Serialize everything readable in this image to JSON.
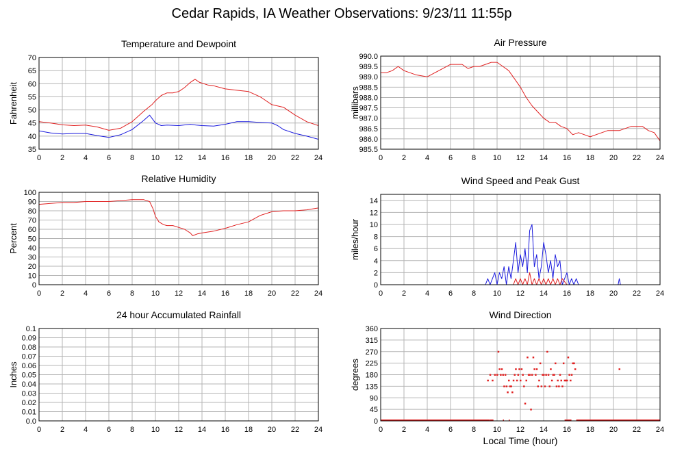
{
  "page": {
    "title": "Cedar Rapids, IA Weather Observations: 9/23/11 11:55p"
  },
  "colors": {
    "series_red": "#e02020",
    "series_blue": "#1a1add",
    "grid": "#b4b4b4"
  },
  "chart_data": [
    {
      "id": "temp",
      "type": "line",
      "title": "Temperature and Dewpoint",
      "xlabel": "",
      "ylabel": "Fahrenheit",
      "xlim": [
        0,
        24
      ],
      "ylim": [
        35,
        70
      ],
      "xticks": [
        0,
        2,
        4,
        6,
        8,
        10,
        12,
        14,
        16,
        18,
        20,
        22,
        24
      ],
      "yticks": [
        35,
        40,
        45,
        50,
        55,
        60,
        65,
        70
      ],
      "tick_decimals": 0,
      "grid": true,
      "series": [
        {
          "color": "#e02020",
          "x": [
            0,
            1,
            2,
            3,
            4,
            5,
            6,
            7,
            8,
            9,
            9.7,
            10,
            10.5,
            11,
            11.5,
            12,
            12.5,
            13,
            13.4,
            13.8,
            14.5,
            15,
            16,
            17,
            18,
            19,
            20,
            21,
            22,
            23,
            24
          ],
          "y": [
            45.5,
            45.0,
            44.3,
            44.0,
            44.2,
            43.5,
            42.2,
            43.0,
            45.5,
            49.5,
            52.0,
            53.5,
            55.5,
            56.5,
            56.5,
            57.0,
            58.5,
            60.5,
            61.7,
            60.5,
            59.5,
            59.2,
            58.0,
            57.5,
            57.0,
            55.0,
            52.0,
            51.0,
            48.0,
            45.5,
            44.0
          ]
        },
        {
          "color": "#1a1add",
          "x": [
            0,
            1,
            2,
            3,
            4,
            5,
            6,
            7,
            8,
            9,
            9.5,
            10,
            10.5,
            11,
            12,
            13,
            13.5,
            14,
            15,
            16,
            17,
            18,
            19,
            20,
            20.5,
            21,
            22,
            23,
            24
          ],
          "y": [
            42.0,
            41.2,
            40.8,
            41.0,
            41.0,
            40.2,
            39.5,
            40.5,
            42.5,
            46.0,
            48.0,
            45.0,
            44.0,
            44.2,
            44.0,
            44.5,
            44.2,
            44.0,
            43.8,
            44.5,
            45.5,
            45.5,
            45.2,
            45.0,
            44.0,
            42.5,
            41.0,
            40.0,
            38.8
          ]
        }
      ]
    },
    {
      "id": "pressure",
      "type": "line",
      "title": "Air Pressure",
      "xlabel": "",
      "ylabel": "millibars",
      "xlim": [
        0,
        24
      ],
      "ylim": [
        985.5,
        990.0
      ],
      "xticks": [
        0,
        2,
        4,
        6,
        8,
        10,
        12,
        14,
        16,
        18,
        20,
        22,
        24
      ],
      "yticks": [
        985.5,
        986.0,
        986.5,
        987.0,
        987.5,
        988.0,
        988.5,
        989.0,
        989.5,
        990.0
      ],
      "tick_decimals": 1,
      "grid": true,
      "series": [
        {
          "color": "#e02020",
          "x": [
            0,
            0.5,
            1,
            1.5,
            2,
            3,
            4,
            5,
            6,
            6.5,
            7,
            7.5,
            8,
            8.5,
            9,
            9.5,
            10,
            10.5,
            11,
            11.5,
            12,
            12.5,
            13,
            13.5,
            14,
            14.5,
            15,
            15.5,
            16,
            16.5,
            17,
            17.5,
            18,
            18.5,
            19,
            19.5,
            20,
            20.5,
            21,
            21.5,
            22,
            22.5,
            23,
            23.5,
            24
          ],
          "y": [
            989.2,
            989.2,
            989.3,
            989.5,
            989.3,
            989.1,
            989.0,
            989.3,
            989.6,
            989.6,
            989.6,
            989.4,
            989.5,
            989.5,
            989.6,
            989.7,
            989.7,
            989.5,
            989.3,
            988.9,
            988.5,
            988.0,
            987.6,
            987.3,
            987.0,
            986.8,
            986.8,
            986.6,
            986.5,
            986.2,
            986.3,
            986.2,
            986.1,
            986.2,
            986.3,
            986.4,
            986.4,
            986.4,
            986.5,
            986.6,
            986.6,
            986.6,
            986.4,
            986.3,
            985.9
          ]
        }
      ]
    },
    {
      "id": "humidity",
      "type": "line",
      "title": "Relative Humidity",
      "xlabel": "",
      "ylabel": "Percent",
      "xlim": [
        0,
        24
      ],
      "ylim": [
        0,
        100
      ],
      "xticks": [
        0,
        2,
        4,
        6,
        8,
        10,
        12,
        14,
        16,
        18,
        20,
        22,
        24
      ],
      "yticks": [
        0,
        10,
        20,
        30,
        40,
        50,
        60,
        70,
        80,
        90,
        100
      ],
      "tick_decimals": 0,
      "grid": true,
      "series": [
        {
          "color": "#e02020",
          "x": [
            0,
            1,
            2,
            3,
            4,
            5,
            6,
            7,
            8,
            9,
            9.5,
            9.8,
            10,
            10.3,
            10.7,
            11,
            11.5,
            12,
            12.5,
            13,
            13.2,
            13.6,
            14,
            15,
            16,
            17,
            18,
            19,
            20,
            21,
            22,
            23,
            24
          ],
          "y": [
            87,
            88,
            89,
            89,
            90,
            90,
            90,
            91,
            92,
            92,
            90,
            82,
            74,
            68,
            65,
            64,
            64,
            62,
            60,
            56,
            53,
            55,
            56,
            58,
            61,
            65,
            68,
            75,
            79,
            80,
            80,
            81,
            83
          ]
        }
      ]
    },
    {
      "id": "wind",
      "type": "line",
      "title": "Wind Speed and Peak Gust",
      "xlabel": "",
      "ylabel": "miles/hour",
      "xlim": [
        0,
        24
      ],
      "ylim": [
        0,
        15
      ],
      "xticks": [
        0,
        2,
        4,
        6,
        8,
        10,
        12,
        14,
        16,
        18,
        20,
        22,
        24
      ],
      "yticks": [
        0,
        2,
        4,
        6,
        8,
        10,
        12,
        14
      ],
      "tick_decimals": 0,
      "grid": true,
      "series": [
        {
          "color": "#1a1add",
          "x": [
            0,
            9,
            9.2,
            9.4,
            9.6,
            9.8,
            10,
            10.2,
            10.4,
            10.6,
            10.8,
            11,
            11.2,
            11.4,
            11.6,
            11.8,
            12,
            12.2,
            12.4,
            12.6,
            12.8,
            13,
            13.2,
            13.4,
            13.6,
            13.8,
            14,
            14.2,
            14.4,
            14.6,
            14.8,
            15,
            15.2,
            15.4,
            15.6,
            15.8,
            16,
            16.2,
            16.4,
            16.6,
            16.8,
            17,
            20.4,
            20.5,
            20.6,
            24
          ],
          "y": [
            0,
            0,
            1,
            0,
            1,
            2,
            0,
            2,
            1,
            3,
            0,
            3,
            1,
            4,
            7,
            2,
            5,
            3,
            6,
            2,
            9,
            10,
            3,
            5,
            1,
            3,
            7,
            5,
            2,
            4,
            1,
            5,
            3,
            4,
            0,
            1,
            2,
            0,
            1,
            0,
            1,
            0,
            0,
            1,
            0,
            0
          ]
        },
        {
          "color": "#e02020",
          "x": [
            0,
            11.4,
            11.6,
            11.8,
            12,
            12.2,
            12.4,
            12.6,
            12.8,
            13,
            13.2,
            13.4,
            13.6,
            13.8,
            14,
            14.2,
            14.4,
            14.6,
            14.8,
            15,
            15.2,
            15.4,
            15.6,
            16,
            24
          ],
          "y": [
            0,
            0,
            1,
            0,
            1,
            0,
            1,
            0,
            2,
            0,
            1,
            0,
            1,
            0,
            1,
            0,
            1,
            0,
            1,
            0,
            1,
            0,
            1,
            0,
            0
          ]
        }
      ]
    },
    {
      "id": "rain",
      "type": "line",
      "title": "24 hour Accumulated Rainfall",
      "xlabel": "",
      "ylabel": "Inches",
      "xlim": [
        0,
        24
      ],
      "ylim": [
        0,
        0.1
      ],
      "xticks": [
        0,
        2,
        4,
        6,
        8,
        10,
        12,
        14,
        16,
        18,
        20,
        22,
        24
      ],
      "yticks": [
        0,
        0.01,
        0.02,
        0.03,
        0.04,
        0.05,
        0.06,
        0.07,
        0.08,
        0.09,
        0.1
      ],
      "tick_labels": [
        "0.0",
        "0.01",
        "0.02",
        "0.03",
        "0.04",
        "0.05",
        "0.06",
        "0.07",
        "0.08",
        "0.09",
        "0.1"
      ],
      "grid": true,
      "series": [
        {
          "color": "#e02020",
          "x": [
            0,
            24
          ],
          "y": [
            0,
            0
          ]
        }
      ]
    },
    {
      "id": "direction",
      "type": "scatter",
      "title": "Wind Direction",
      "xlabel": "Local Time (hour)",
      "ylabel": "degrees",
      "xlim": [
        0,
        24
      ],
      "ylim": [
        0,
        360
      ],
      "xticks": [
        0,
        2,
        4,
        6,
        8,
        10,
        12,
        14,
        16,
        18,
        20,
        22,
        24
      ],
      "yticks": [
        0,
        45,
        90,
        135,
        180,
        225,
        270,
        315,
        360
      ],
      "tick_decimals": 0,
      "grid": true,
      "baseline": {
        "color": "#e02020",
        "segments": [
          [
            0,
            9.3
          ],
          [
            9.4,
            9.6
          ],
          [
            10.5,
            10.5
          ],
          [
            11,
            11
          ],
          [
            15.8,
            16.3
          ],
          [
            16.8,
            24
          ]
        ]
      },
      "series": [
        {
          "color": "#e02020",
          "x": [
            9.2,
            9.4,
            9.6,
            9.8,
            10,
            10.1,
            10.2,
            10.3,
            10.4,
            10.5,
            10.6,
            10.7,
            10.8,
            10.9,
            11,
            11.1,
            11.2,
            11.3,
            11.4,
            11.5,
            11.6,
            11.7,
            11.8,
            11.9,
            12,
            12.1,
            12.2,
            12.3,
            12.4,
            12.5,
            12.6,
            12.7,
            12.8,
            12.9,
            13,
            13.1,
            13.2,
            13.3,
            13.4,
            13.5,
            13.6,
            13.7,
            13.8,
            13.9,
            14,
            14.1,
            14.2,
            14.3,
            14.4,
            14.5,
            14.6,
            14.7,
            14.8,
            14.9,
            15,
            15.1,
            15.2,
            15.3,
            15.4,
            15.5,
            15.6,
            15.7,
            15.8,
            15.9,
            16,
            16.1,
            16.2,
            16.3,
            16.4,
            16.5,
            16.6,
            16.7,
            20.5
          ],
          "y": [
            158,
            180,
            158,
            180,
            180,
            270,
            202,
            180,
            202,
            180,
            135,
            180,
            135,
            112,
            158,
            135,
            135,
            112,
            158,
            180,
            202,
            158,
            180,
            202,
            158,
            202,
            180,
            135,
            68,
            158,
            248,
            180,
            180,
            45,
            180,
            248,
            202,
            180,
            202,
            135,
            158,
            225,
            135,
            180,
            180,
            135,
            180,
            270,
            180,
            135,
            202,
            158,
            180,
            180,
            225,
            135,
            158,
            135,
            180,
            158,
            135,
            225,
            158,
            158,
            158,
            248,
            180,
            158,
            180,
            225,
            225,
            202,
            202
          ]
        }
      ]
    }
  ]
}
